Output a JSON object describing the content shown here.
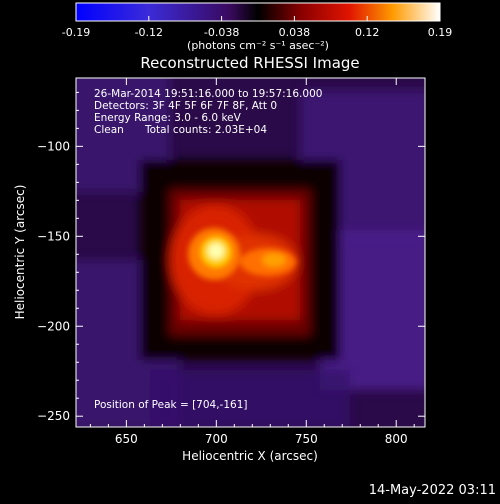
{
  "colorbar": {
    "ticks": [
      "-0.19",
      "-0.12",
      "-0.038",
      "0.038",
      "0.12",
      "0.19"
    ],
    "unit_label": "(photons cm⁻² s⁻¹ asec⁻²)",
    "range": [
      -0.19,
      0.19
    ]
  },
  "chart_data": {
    "type": "heatmap",
    "title": "Reconstructed RHESSI Image",
    "annotations": {
      "time_range": "26-Mar-2014 19:51:16.000 to 19:57:16.000",
      "detectors": "Detectors: 3F 4F 5F 6F 7F 8F, Att 0",
      "energy_range": "Energy Range: 3.0 - 6.0 keV",
      "method": "Clean",
      "total_counts": "Total counts: 2.03E+04",
      "peak_position": "Position of Peak = [704,-161]"
    },
    "xlabel": "Heliocentric X (arcsec)",
    "ylabel": "Heliocentric Y (arcsec)",
    "xlim": [
      622,
      816
    ],
    "ylim": [
      -256,
      -62
    ],
    "xticks": [
      650,
      700,
      750,
      800
    ],
    "yticks": [
      -100,
      -150,
      -200,
      -250
    ],
    "peak": [
      704,
      -161
    ],
    "sources": [
      {
        "x": 704,
        "y": -161,
        "intensity": 0.19
      },
      {
        "x": 725,
        "y": -163,
        "intensity": 0.12
      },
      {
        "x": 698,
        "y": -150,
        "intensity": 0.09
      },
      {
        "x": 708,
        "y": -175,
        "intensity": 0.08
      }
    ]
  },
  "footer": {
    "timestamp": "14-May-2022 03:11"
  }
}
